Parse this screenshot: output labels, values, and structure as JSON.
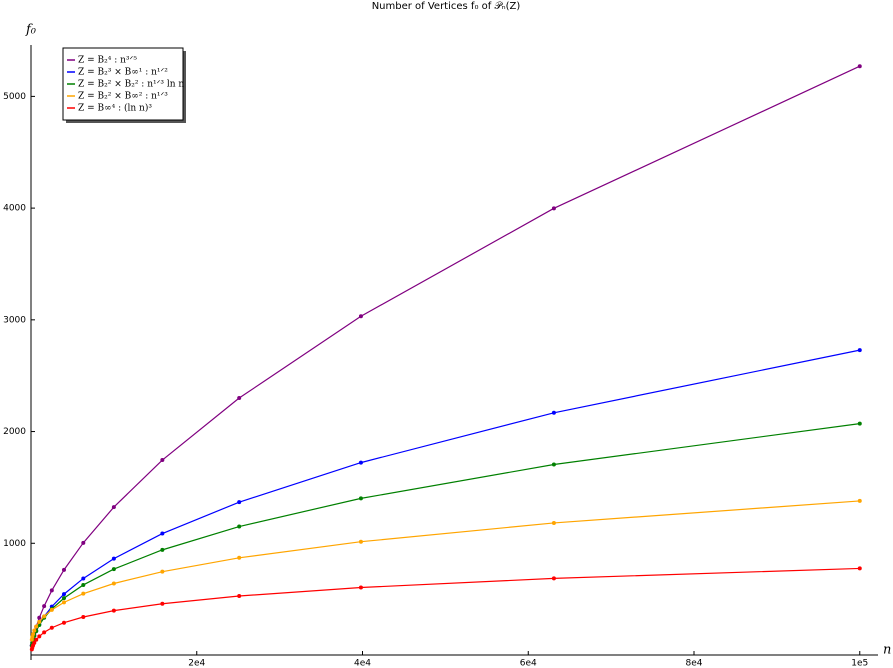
{
  "chart_data": {
    "type": "line",
    "title": "Number of Vertices f₀ of 𝒫ₙ(Z)",
    "xlabel": "n",
    "ylabel": "f₀",
    "x": [
      100,
      158,
      251,
      398,
      631,
      1000,
      1585,
      2512,
      3981,
      6310,
      10000,
      15849,
      25119,
      39811,
      63096,
      100000
    ],
    "series": [
      {
        "name": "Z = B₂⁴ : n³ᐟ⁵",
        "color": "#800080",
        "values": [
          84,
          110,
          145,
          191,
          252,
          333,
          438,
          578,
          762,
          1004,
          1324,
          1745,
          2300,
          3032,
          3998,
          5270
        ]
      },
      {
        "name": "Z = B₂³ × B∞¹ : n¹ᐟ²",
        "color": "#0000ff",
        "values": [
          86,
          108,
          137,
          172,
          217,
          273,
          344,
          433,
          545,
          685,
          863,
          1087,
          1368,
          1722,
          2168,
          2729
        ]
      },
      {
        "name": "Z = B₂² × B₂² : n¹ᐟ³ ln n",
        "color": "#008000",
        "values": [
          83,
          106,
          135,
          171,
          214,
          268,
          333,
          412,
          509,
          627,
          769,
          941,
          1150,
          1402,
          1705,
          2071
        ]
      },
      {
        "name": "Z = B₂² × B∞² : n¹ᐟ³",
        "color": "#ffa500",
        "values": [
          138,
          161,
          187,
          219,
          255,
          297,
          346,
          404,
          471,
          549,
          640,
          746,
          870,
          1014,
          1182,
          1379
        ]
      },
      {
        "name": "Z = B∞⁴ : (ln n)³",
        "color": "#ff0000",
        "values": [
          50,
          66,
          86,
          109,
          136,
          167,
          203,
          244,
          289,
          340,
          397,
          459,
          528,
          604,
          686,
          775
        ]
      }
    ],
    "xlim": [
      0,
      102200
    ],
    "ylim": [
      0,
      5460
    ],
    "xticks": [
      {
        "value": 20000,
        "label": "2e4"
      },
      {
        "value": 40000,
        "label": "4e4"
      },
      {
        "value": 60000,
        "label": "6e4"
      },
      {
        "value": 80000,
        "label": "8e4"
      },
      {
        "value": 100000,
        "label": "1e5"
      }
    ],
    "yticks": [
      1000,
      2000,
      3000,
      4000,
      5000
    ],
    "legend": "upper left"
  }
}
